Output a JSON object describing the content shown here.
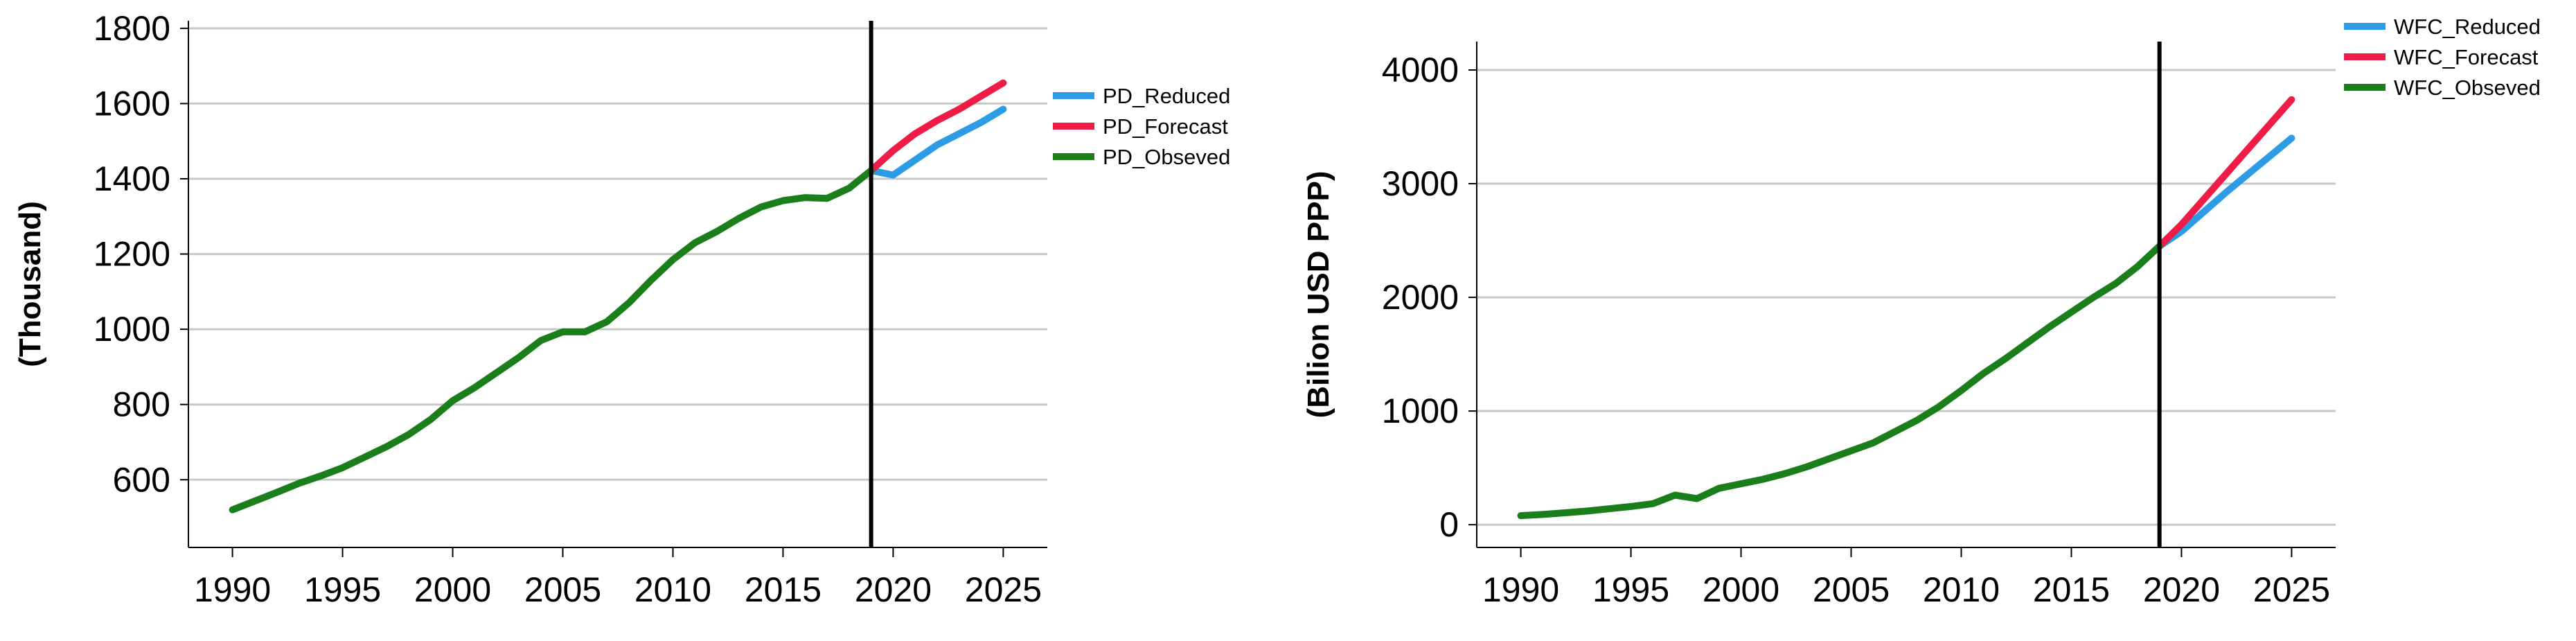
{
  "chart_data": [
    {
      "id": "pd",
      "type": "line",
      "ylabel": "(Thousand)",
      "xlabel": "",
      "xlim": [
        1988,
        2027
      ],
      "ylim": [
        420,
        1820
      ],
      "xticks": [
        1990,
        1995,
        2000,
        2005,
        2010,
        2015,
        2020,
        2025
      ],
      "yticks": [
        600,
        800,
        1000,
        1200,
        1400,
        1600,
        1800
      ],
      "vline_x": 2019,
      "legend_position": "right",
      "series": [
        {
          "name": "PD_Reduced",
          "color": "#2e9be6",
          "x": [
            2019,
            2020,
            2021,
            2022,
            2023,
            2024,
            2025
          ],
          "values": [
            1422,
            1410,
            1450,
            1490,
            1520,
            1550,
            1585
          ]
        },
        {
          "name": "PD_Forecast",
          "color": "#ee1c47",
          "x": [
            2019,
            2020,
            2021,
            2022,
            2023,
            2024,
            2025
          ],
          "values": [
            1422,
            1475,
            1520,
            1555,
            1585,
            1620,
            1655
          ]
        },
        {
          "name": "PD_Obseved",
          "color": "#1a7f1a",
          "x": [
            1990,
            1991,
            1992,
            1993,
            1994,
            1995,
            1996,
            1997,
            1998,
            1999,
            2000,
            2001,
            2002,
            2003,
            2004,
            2005,
            2006,
            2007,
            2008,
            2009,
            2010,
            2011,
            2012,
            2013,
            2014,
            2015,
            2016,
            2017,
            2018,
            2019
          ],
          "values": [
            520,
            543,
            566,
            590,
            610,
            632,
            660,
            688,
            720,
            760,
            810,
            845,
            885,
            925,
            970,
            993,
            993,
            1020,
            1070,
            1130,
            1185,
            1230,
            1260,
            1295,
            1325,
            1342,
            1350,
            1348,
            1375,
            1422
          ]
        }
      ]
    },
    {
      "id": "wfc",
      "type": "line",
      "ylabel": "(Bilion USD PPP)",
      "xlabel": "",
      "xlim": [
        1988,
        2027
      ],
      "ylim": [
        -200,
        4250
      ],
      "xticks": [
        1990,
        1995,
        2000,
        2005,
        2010,
        2015,
        2020,
        2025
      ],
      "yticks": [
        0,
        1000,
        2000,
        3000,
        4000
      ],
      "vline_x": 2019,
      "legend_position": "top-right",
      "series": [
        {
          "name": "WFC_Reduced",
          "color": "#2e9be6",
          "x": [
            2019,
            2020,
            2021,
            2022,
            2023,
            2024,
            2025
          ],
          "values": [
            2450,
            2580,
            2750,
            2920,
            3080,
            3240,
            3400
          ]
        },
        {
          "name": "WFC_Forecast",
          "color": "#ee1c47",
          "x": [
            2019,
            2020,
            2021,
            2022,
            2023,
            2024,
            2025
          ],
          "values": [
            2450,
            2640,
            2860,
            3080,
            3300,
            3520,
            3740
          ]
        },
        {
          "name": "WFC_Obseved",
          "color": "#1a7f1a",
          "x": [
            1990,
            1991,
            1992,
            1993,
            1994,
            1995,
            1996,
            1997,
            1998,
            1999,
            2000,
            2001,
            2002,
            2003,
            2004,
            2005,
            2006,
            2007,
            2008,
            2009,
            2010,
            2011,
            2012,
            2013,
            2014,
            2015,
            2016,
            2017,
            2018,
            2019
          ],
          "values": [
            80,
            90,
            105,
            120,
            140,
            160,
            185,
            260,
            230,
            320,
            360,
            400,
            450,
            510,
            580,
            650,
            720,
            820,
            920,
            1040,
            1180,
            1330,
            1460,
            1600,
            1740,
            1870,
            2000,
            2120,
            2270,
            2450
          ]
        }
      ]
    }
  ]
}
